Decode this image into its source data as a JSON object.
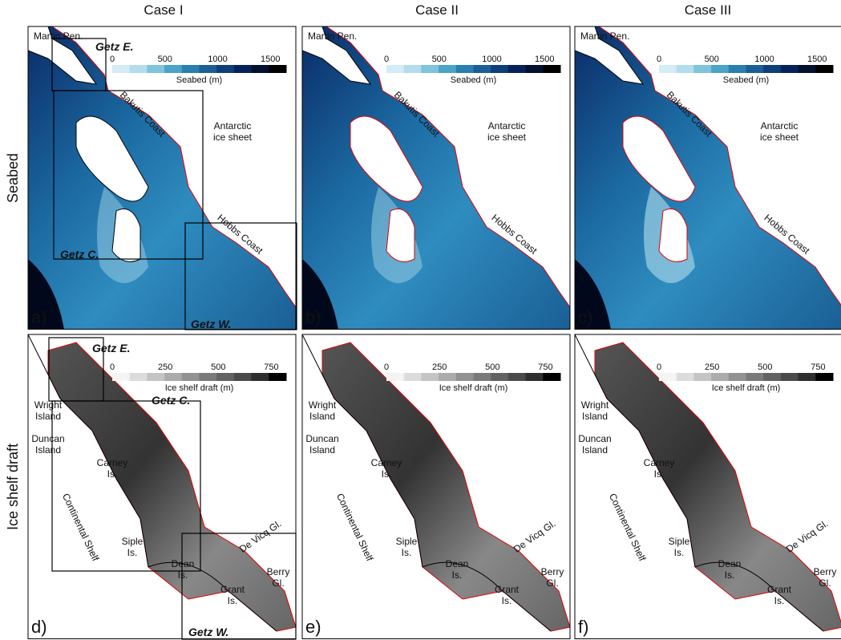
{
  "columns": [
    "Case I",
    "Case II",
    "Case III"
  ],
  "rows": [
    {
      "title": "Seabed",
      "colorbar": {
        "label": "Seabed (m)",
        "range": [
          0,
          1650
        ],
        "ticks": [
          0,
          500,
          1000,
          1500
        ]
      },
      "places": [
        [
          "Martin Pen."
        ],
        [
          "Bakutis Coast"
        ],
        [
          "Antarctic",
          "ice sheet"
        ],
        [
          "Hobbs Coast"
        ]
      ],
      "panels": [
        {
          "label": "a)",
          "regions": [
            "Getz E.",
            "Getz C.",
            "Getz W."
          ]
        },
        {
          "label": "b)"
        },
        {
          "label": "c)"
        }
      ]
    },
    {
      "title": "Ice shelf draft",
      "colorbar": {
        "label": "Ice shelf draft (m)",
        "range": [
          0,
          820
        ],
        "ticks": [
          0,
          250,
          500,
          750
        ]
      },
      "places": [
        [
          "Wright",
          "Island"
        ],
        [
          "Duncan",
          "Island"
        ],
        [
          "Carney",
          "Is."
        ],
        [
          "Continental Shelf"
        ],
        [
          "Siple",
          "Is."
        ],
        [
          "Dean",
          "Is."
        ],
        [
          "Grant",
          "Is."
        ],
        [
          "De Vicq Gl."
        ],
        [
          "Berry",
          "Gl."
        ]
      ],
      "panels": [
        {
          "label": "d)",
          "regions": [
            "Getz E.",
            "Getz C.",
            "Getz W."
          ]
        },
        {
          "label": "e)"
        },
        {
          "label": "f)"
        }
      ]
    }
  ]
}
